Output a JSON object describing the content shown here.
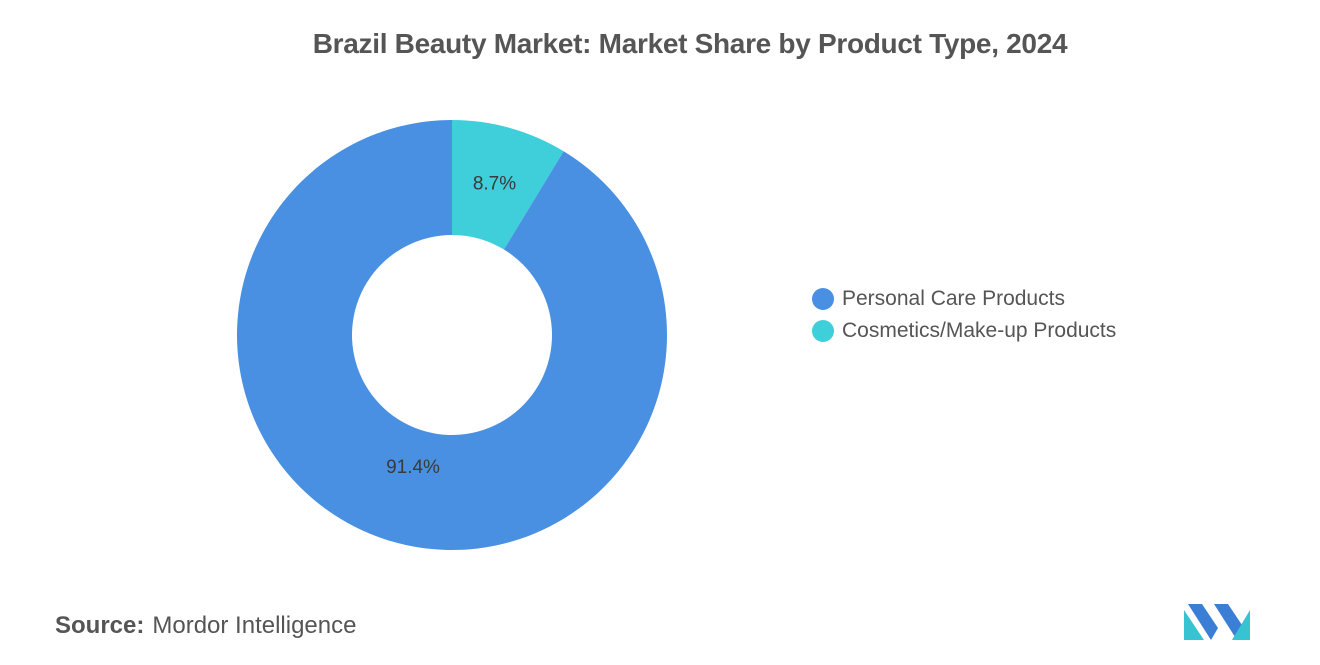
{
  "chart_data": {
    "type": "pie",
    "donut": true,
    "title": "Brazil Beauty Market: Market Share by Product Type, 2024",
    "slices": [
      {
        "name": "Personal Care Products",
        "value": 91.4,
        "label": "91.4%",
        "color": "#4a90e2"
      },
      {
        "name": "Cosmetics/Make-up Products",
        "value": 8.7,
        "label": "8.7%",
        "color": "#3ecfda"
      }
    ],
    "legend_position": "right"
  },
  "source": {
    "label": "Source:",
    "text": "Mordor Intelligence"
  },
  "logo": {
    "icon": "mordor-intelligence-logo",
    "colors": [
      "#3a7fd5",
      "#38c3d3"
    ]
  }
}
